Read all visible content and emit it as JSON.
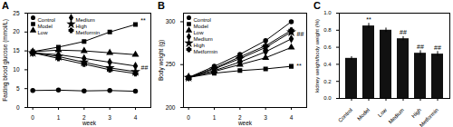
{
  "chart_data": [
    {
      "type": "line",
      "title": "A",
      "xlabel": "week",
      "ylabel": "Fasting blood glucose (mmol/L)",
      "x": [
        0,
        1,
        2,
        3,
        4
      ],
      "xlim": [
        -0.2,
        4.6
      ],
      "xticks": [
        0,
        1,
        2,
        3,
        4
      ],
      "ylim": [
        0,
        25
      ],
      "yticks": [
        0,
        5,
        10,
        15,
        20,
        25
      ],
      "legend": "upper left",
      "series": [
        {
          "name": "Control",
          "color": "#000000",
          "marker": "circle",
          "values": [
            4.5,
            4.6,
            4.4,
            4.5,
            4.3
          ]
        },
        {
          "name": "Model",
          "color": "#000000",
          "marker": "square",
          "values": [
            14.8,
            16.0,
            17.5,
            20.0,
            22.0
          ]
        },
        {
          "name": "Low",
          "color": "#000000",
          "marker": "triangle",
          "values": [
            14.8,
            15.2,
            15.0,
            14.5,
            14.0
          ]
        },
        {
          "name": "Medium",
          "color": "#000000",
          "marker": "diamond",
          "values": [
            14.5,
            14.0,
            13.0,
            12.0,
            11.0
          ]
        },
        {
          "name": "High",
          "color": "#000000",
          "marker": "star",
          "values": [
            14.5,
            13.5,
            12.0,
            10.5,
            9.5
          ]
        },
        {
          "name": "Metformin",
          "color": "#000000",
          "marker": "cross",
          "values": [
            14.5,
            13.0,
            11.5,
            10.0,
            9.0
          ]
        }
      ],
      "annotations": [
        {
          "text": "**",
          "x": 4.3,
          "y": 23
        },
        {
          "text": "##",
          "x": 4.35,
          "y": 10.5
        }
      ]
    },
    {
      "type": "line",
      "title": "B",
      "xlabel": "week",
      "ylabel": "Body weight (g)",
      "x": [
        0,
        1,
        2,
        3,
        4
      ],
      "xlim": [
        -0.2,
        4.6
      ],
      "xticks": [
        0,
        1,
        2,
        3,
        4
      ],
      "ylim": [
        200,
        310
      ],
      "yticks": [
        200,
        250,
        300
      ],
      "legend": "upper left",
      "series": [
        {
          "name": "Control",
          "color": "#000000",
          "marker": "circle",
          "values": [
            235,
            248,
            262,
            278,
            300
          ]
        },
        {
          "name": "Model",
          "color": "#000000",
          "marker": "square",
          "values": [
            235,
            240,
            243,
            245,
            248
          ]
        },
        {
          "name": "Low",
          "color": "#000000",
          "marker": "triangle",
          "values": [
            235,
            242,
            250,
            258,
            270
          ]
        },
        {
          "name": "Medium",
          "color": "#000000",
          "marker": "diamond",
          "values": [
            235,
            243,
            253,
            265,
            280
          ]
        },
        {
          "name": "High",
          "color": "#000000",
          "marker": "star",
          "values": [
            235,
            245,
            257,
            270,
            288
          ]
        },
        {
          "name": "Metformin",
          "color": "#000000",
          "marker": "cross",
          "values": [
            235,
            246,
            259,
            272,
            290
          ]
        }
      ],
      "annotations": [
        {
          "text": "##",
          "x": 4.35,
          "y": 285
        },
        {
          "text": "**",
          "x": 4.3,
          "y": 248
        }
      ]
    },
    {
      "type": "bar",
      "title": "C",
      "ylabel": "kidney weight/body weight (%)",
      "categories": [
        "Control",
        "Model",
        "Low",
        "Medium",
        "High",
        "Metformin"
      ],
      "values": [
        0.47,
        0.85,
        0.8,
        0.7,
        0.53,
        0.52
      ],
      "errors": [
        0.02,
        0.03,
        0.025,
        0.025,
        0.03,
        0.03
      ],
      "annotations": [
        null,
        "**",
        null,
        "##",
        "##",
        "##"
      ],
      "color": "#111111",
      "ylim": [
        0,
        1.0
      ],
      "yticks": [
        {
          "value": 0,
          "label": "0.0"
        },
        {
          "value": 0.2,
          "label": "0.2"
        },
        {
          "value": 0.4,
          "label": "0.4"
        },
        {
          "value": 0.6,
          "label": "0.6"
        },
        {
          "value": 0.8,
          "label": "0.8"
        },
        {
          "value": 1.0,
          "label": "1.0"
        }
      ]
    }
  ]
}
